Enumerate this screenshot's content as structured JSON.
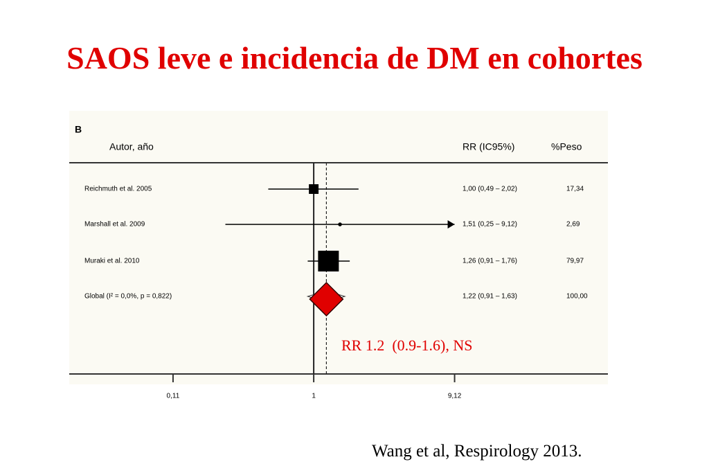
{
  "chart_data": {
    "type": "forest",
    "title": "SAOS leve e incidencia de DM en cohortes",
    "title_color": "#e00000",
    "panel_label": "B",
    "column_headers": {
      "study": "Autor, año",
      "rr": "RR (IC95%)",
      "weight": "%Peso"
    },
    "studies": [
      {
        "name": "Reichmuth et al. 2005",
        "rr": 1.0,
        "ci_low": 0.49,
        "ci_high": 2.02,
        "weight": 17.34,
        "rr_label": "1,00 (0,49 – 2,02)",
        "weight_label": "17,34"
      },
      {
        "name": "Marshall et al. 2009",
        "rr": 1.51,
        "ci_low": 0.25,
        "ci_high": 9.12,
        "weight": 2.69,
        "rr_label": "1,51 (0,25 – 9,12)",
        "weight_label": "2,69"
      },
      {
        "name": "Muraki et al. 2010",
        "rr": 1.26,
        "ci_low": 0.91,
        "ci_high": 1.76,
        "weight": 79.97,
        "rr_label": "1,26 (0,91 – 1,76)",
        "weight_label": "79,97"
      }
    ],
    "overall": {
      "name": "Global (I² = 0,0%, p = 0,822)",
      "rr": 1.22,
      "ci_low": 0.91,
      "ci_high": 1.63,
      "weight": 100,
      "rr_label": "1,22 (0,91 – 1,63)",
      "weight_label": "100,00",
      "color": "#e00000"
    },
    "color": "#000000",
    "log_scale": true,
    "reference_line": 1,
    "xlim": [
      0.02,
      100
    ],
    "xticks": [
      {
        "value": 0.11,
        "label": "0,11"
      },
      1,
      {
        "value": 9.12,
        "label": "9,12"
      }
    ],
    "annotation": "RR 1.2  (0.9-1.6), NS",
    "annotation_color": "#e00000",
    "source": "Wang et al, Respirology 2013."
  }
}
